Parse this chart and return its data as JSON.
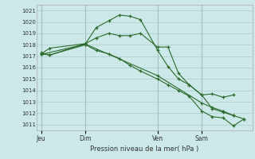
{
  "background_color": "#cce8e8",
  "grid_color": "#aacccc",
  "line_color": "#2d6b2d",
  "marker_color": "#2d6b2d",
  "xlabel": "Pression niveau de la mer( hPa )",
  "ylim": [
    1010.5,
    1021.5
  ],
  "yticks": [
    1011,
    1012,
    1013,
    1014,
    1015,
    1016,
    1017,
    1018,
    1019,
    1020,
    1021
  ],
  "day_labels": [
    "Jeu",
    "Dim",
    "Ven",
    "Sam"
  ],
  "day_positions": [
    0.0,
    0.21,
    0.55,
    0.76
  ],
  "series": [
    {
      "x": [
        0.0,
        0.04,
        0.21,
        0.26,
        0.32,
        0.37,
        0.42,
        0.47,
        0.55,
        0.6,
        0.65,
        0.7,
        0.76,
        0.81,
        0.86,
        0.91
      ],
      "y": [
        1017.2,
        1017.7,
        1018.1,
        1019.5,
        1020.1,
        1020.6,
        1020.5,
        1020.2,
        1017.55,
        1016.1,
        1015.0,
        1014.5,
        1013.6,
        1013.7,
        1013.4,
        1013.6
      ]
    },
    {
      "x": [
        0.0,
        0.04,
        0.21,
        0.26,
        0.32,
        0.37,
        0.42,
        0.47,
        0.55,
        0.6,
        0.65,
        0.7,
        0.76,
        0.81,
        0.86,
        0.91
      ],
      "y": [
        1017.3,
        1017.1,
        1018.1,
        1018.6,
        1019.0,
        1018.8,
        1018.8,
        1019.0,
        1017.8,
        1017.8,
        1015.5,
        1014.5,
        1013.6,
        1012.4,
        1012.1,
        1011.8
      ]
    },
    {
      "x": [
        0.0,
        0.04,
        0.21,
        0.26,
        0.32,
        0.37,
        0.42,
        0.47,
        0.55,
        0.6,
        0.65,
        0.7,
        0.76,
        0.81,
        0.86,
        0.91,
        0.96
      ],
      "y": [
        1017.2,
        1017.1,
        1018.0,
        1017.5,
        1017.2,
        1016.8,
        1016.2,
        1015.7,
        1015.0,
        1014.5,
        1014.0,
        1013.5,
        1012.2,
        1011.7,
        1011.6,
        1010.9,
        1011.5
      ]
    },
    {
      "x": [
        0.0,
        0.21,
        0.55,
        0.76,
        0.81,
        0.86,
        0.91,
        0.96
      ],
      "y": [
        1017.15,
        1018.05,
        1015.3,
        1012.9,
        1012.5,
        1012.2,
        1011.8,
        1011.5
      ]
    }
  ]
}
